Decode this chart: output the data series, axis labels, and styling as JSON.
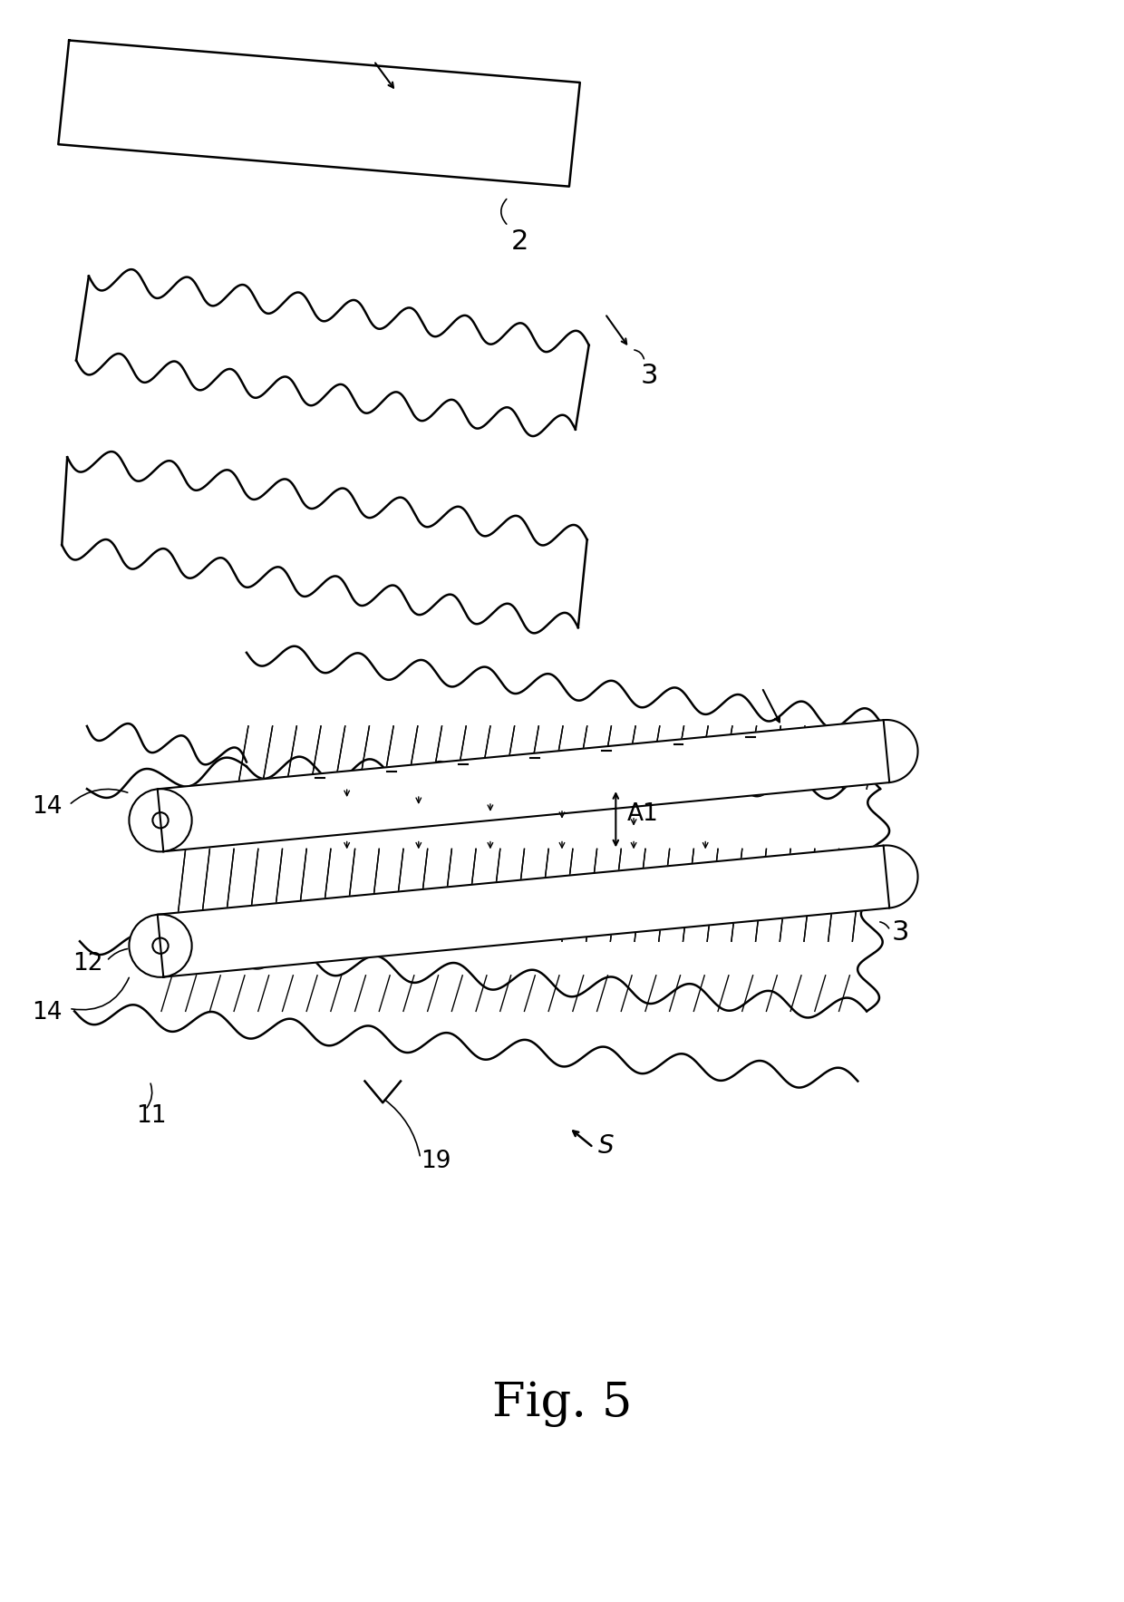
{
  "bg_color": "#ffffff",
  "line_color": "#000000",
  "fig_width": 12.4,
  "fig_height": 17.67,
  "title": "Fig. 5"
}
